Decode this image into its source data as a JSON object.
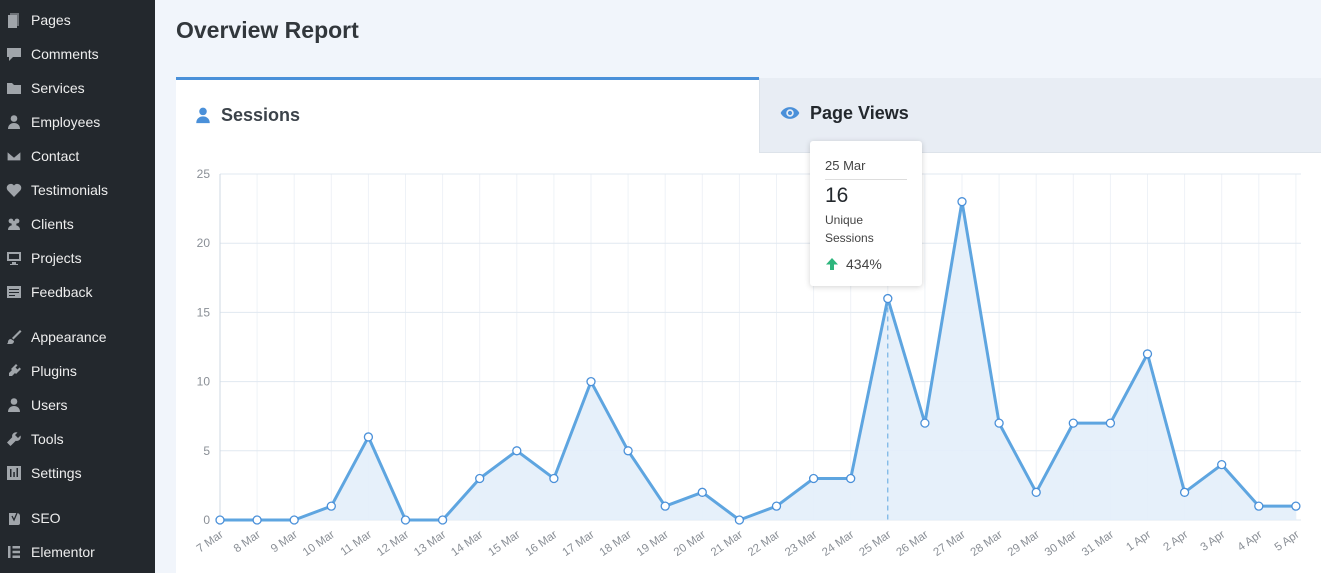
{
  "sidebar": {
    "items": [
      {
        "label": "Pages",
        "icon": "pages-icon"
      },
      {
        "label": "Comments",
        "icon": "comments-icon"
      },
      {
        "label": "Services",
        "icon": "folder-icon"
      },
      {
        "label": "Employees",
        "icon": "user-icon"
      },
      {
        "label": "Contact",
        "icon": "mail-icon"
      },
      {
        "label": "Testimonials",
        "icon": "heart-icon"
      },
      {
        "label": "Clients",
        "icon": "groups-icon"
      },
      {
        "label": "Projects",
        "icon": "desktop-icon"
      },
      {
        "label": "Feedback",
        "icon": "feedback-icon"
      },
      {
        "label": "Appearance",
        "icon": "paintbrush-icon"
      },
      {
        "label": "Plugins",
        "icon": "plugin-icon"
      },
      {
        "label": "Users",
        "icon": "user-icon"
      },
      {
        "label": "Tools",
        "icon": "wrench-icon"
      },
      {
        "label": "Settings",
        "icon": "settings-icon"
      },
      {
        "label": "SEO",
        "icon": "yoast-icon"
      },
      {
        "label": "Elementor",
        "icon": "elementor-icon"
      }
    ]
  },
  "page": {
    "title": "Overview Report"
  },
  "tabs": {
    "sessions": {
      "label": "Sessions",
      "icon": "user-icon",
      "active": true
    },
    "pageviews": {
      "label": "Page Views",
      "icon": "eye-icon",
      "active": false
    }
  },
  "tooltip": {
    "date": "25 Mar",
    "value": "16",
    "label": "Unique Sessions",
    "change": "434%",
    "change_color": "#2eb67d"
  },
  "colors": {
    "accent": "#4a90d9",
    "line": "#5ea5e0",
    "fill": "#e3eefa",
    "sidebar_bg": "#23282d"
  },
  "chart_data": {
    "type": "area",
    "categories": [
      "7 Mar",
      "8 Mar",
      "9 Mar",
      "10 Mar",
      "11 Mar",
      "12 Mar",
      "13 Mar",
      "14 Mar",
      "15 Mar",
      "16 Mar",
      "17 Mar",
      "18 Mar",
      "19 Mar",
      "20 Mar",
      "21 Mar",
      "22 Mar",
      "23 Mar",
      "24 Mar",
      "25 Mar",
      "26 Mar",
      "27 Mar",
      "28 Mar",
      "29 Mar",
      "30 Mar",
      "31 Mar",
      "1 Apr",
      "2 Apr",
      "3 Apr",
      "4 Apr",
      "5 Apr"
    ],
    "series": [
      {
        "values": [
          0,
          0,
          0,
          1,
          6,
          0,
          0,
          3,
          5,
          3,
          10,
          5,
          1,
          2,
          0,
          1,
          3,
          3,
          16,
          7,
          23,
          7,
          2,
          7,
          7,
          12,
          2,
          4,
          1,
          1
        ]
      }
    ],
    "yticks": [
      0,
      5,
      10,
      15,
      20,
      25
    ],
    "ylim": [
      0,
      25
    ],
    "highlight": "25 Mar",
    "grid": true
  }
}
